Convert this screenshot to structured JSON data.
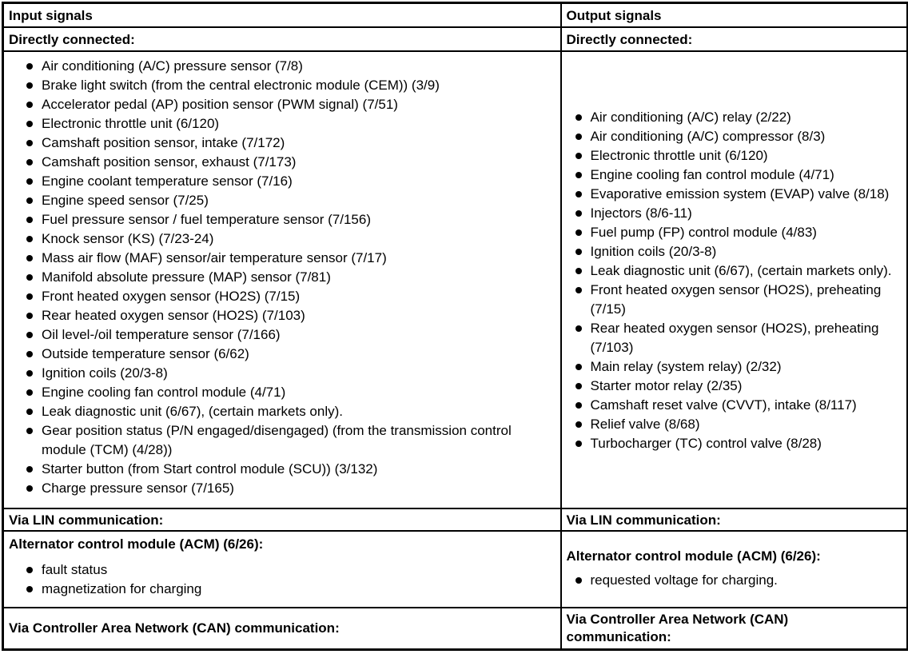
{
  "colors": {
    "text": "#000000",
    "border": "#000000",
    "background": "#ffffff"
  },
  "input_signals": {
    "header": "Input signals",
    "directly_connected": {
      "label": "Directly connected:",
      "items": [
        "Air conditioning (A/C) pressure sensor (7/8)",
        "Brake light switch (from the central electronic module (CEM)) (3/9)",
        "Accelerator pedal (AP) position sensor (PWM signal) (7/51)",
        "Electronic throttle unit (6/120)",
        "Camshaft position sensor, intake (7/172)",
        "Camshaft position sensor, exhaust (7/173)",
        "Engine coolant temperature sensor (7/16)",
        "Engine speed sensor (7/25)",
        "Fuel pressure sensor / fuel temperature sensor (7/156)",
        "Knock sensor (KS) (7/23-24)",
        "Mass air flow (MAF) sensor/air temperature sensor (7/17)",
        "Manifold absolute pressure (MAP) sensor (7/81)",
        "Front heated oxygen sensor (HO2S) (7/15)",
        "Rear heated oxygen sensor (HO2S) (7/103)",
        "Oil level-/oil temperature sensor (7/166)",
        "Outside temperature sensor (6/62)",
        "Ignition coils (20/3-8)",
        "Engine cooling fan control module (4/71)",
        "Leak diagnostic unit (6/67), (certain markets only).",
        "Gear position status (P/N engaged/disengaged) (from the transmission control module (TCM) (4/28))",
        "Starter button (from Start control module (SCU)) (3/132)",
        "Charge pressure sensor (7/165)"
      ]
    },
    "via_lin": {
      "label": "Via LIN communication:"
    },
    "acm": {
      "heading": "Alternator control module (ACM) (6/26):",
      "items": [
        "fault status",
        "magnetization for charging"
      ]
    },
    "via_can": {
      "label": "Via Controller Area Network (CAN) communication:"
    }
  },
  "output_signals": {
    "header": "Output signals",
    "directly_connected": {
      "label": "Directly connected:",
      "items": [
        "Air conditioning (A/C) relay (2/22)",
        "Air conditioning (A/C) compressor (8/3)",
        "Electronic throttle unit (6/120)",
        "Engine cooling fan control module (4/71)",
        "Evaporative emission system (EVAP) valve (8/18)",
        "Injectors (8/6-11)",
        "Fuel pump (FP) control module (4/83)",
        "Ignition coils (20/3-8)",
        "Leak diagnostic unit (6/67), (certain markets only).",
        "Front heated oxygen sensor (HO2S), preheating (7/15)",
        "Rear heated oxygen sensor (HO2S), preheating (7/103)",
        "Main relay (system relay) (2/32)",
        "Starter motor relay (2/35)",
        "Camshaft reset valve (CVVT), intake (8/117)",
        "Relief valve (8/68)",
        "Turbocharger (TC) control valve (8/28)"
      ]
    },
    "via_lin": {
      "label": "Via LIN communication:"
    },
    "acm": {
      "heading": "Alternator control module (ACM) (6/26):",
      "items": [
        "requested voltage for charging."
      ]
    },
    "via_can": {
      "label": "Via Controller Area Network (CAN) communication:"
    }
  }
}
